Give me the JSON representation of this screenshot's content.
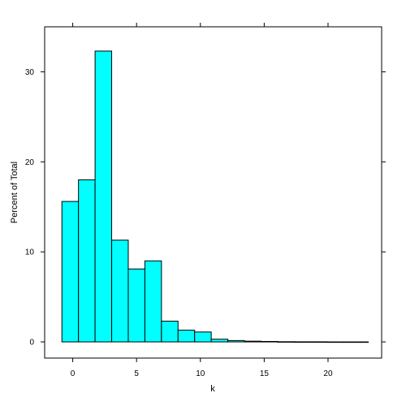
{
  "chart_data": {
    "type": "bar",
    "subtype": "histogram",
    "xlabel": "k",
    "ylabel": "Percent of Total",
    "xlim": [
      -2.2,
      24.2
    ],
    "ylim": [
      -1.8,
      35
    ],
    "x_ticks": [
      0,
      5,
      10,
      15,
      20
    ],
    "y_ticks": [
      0,
      10,
      20,
      30
    ],
    "bin_width": 1.3,
    "bins": [
      {
        "start": -0.85,
        "end": 0.45,
        "value": 15.6
      },
      {
        "start": 0.45,
        "end": 1.75,
        "value": 18.0
      },
      {
        "start": 1.75,
        "end": 3.05,
        "value": 32.3
      },
      {
        "start": 3.05,
        "end": 4.35,
        "value": 11.3
      },
      {
        "start": 4.35,
        "end": 5.65,
        "value": 8.1
      },
      {
        "start": 5.65,
        "end": 6.95,
        "value": 9.0
      },
      {
        "start": 6.95,
        "end": 8.25,
        "value": 2.3
      },
      {
        "start": 8.25,
        "end": 9.55,
        "value": 1.3
      },
      {
        "start": 9.55,
        "end": 10.85,
        "value": 1.1
      },
      {
        "start": 10.85,
        "end": 12.15,
        "value": 0.3
      },
      {
        "start": 12.15,
        "end": 13.45,
        "value": 0.15
      },
      {
        "start": 13.45,
        "end": 14.75,
        "value": 0.08
      },
      {
        "start": 14.75,
        "end": 16.05,
        "value": 0.05
      },
      {
        "start": 16.05,
        "end": 17.35,
        "value": 0.02
      },
      {
        "start": 17.35,
        "end": 18.65,
        "value": 0.01
      },
      {
        "start": 18.65,
        "end": 19.95,
        "value": 0.01
      },
      {
        "start": 19.95,
        "end": 21.25,
        "value": 0.0
      },
      {
        "start": 21.25,
        "end": 22.55,
        "value": 0.0
      },
      {
        "start": 22.55,
        "end": 23.15,
        "value": 0.0
      }
    ],
    "grid": false,
    "colors": {
      "bar_fill": "#00ffff",
      "bar_stroke": "#000000",
      "frame": "#000000"
    }
  }
}
